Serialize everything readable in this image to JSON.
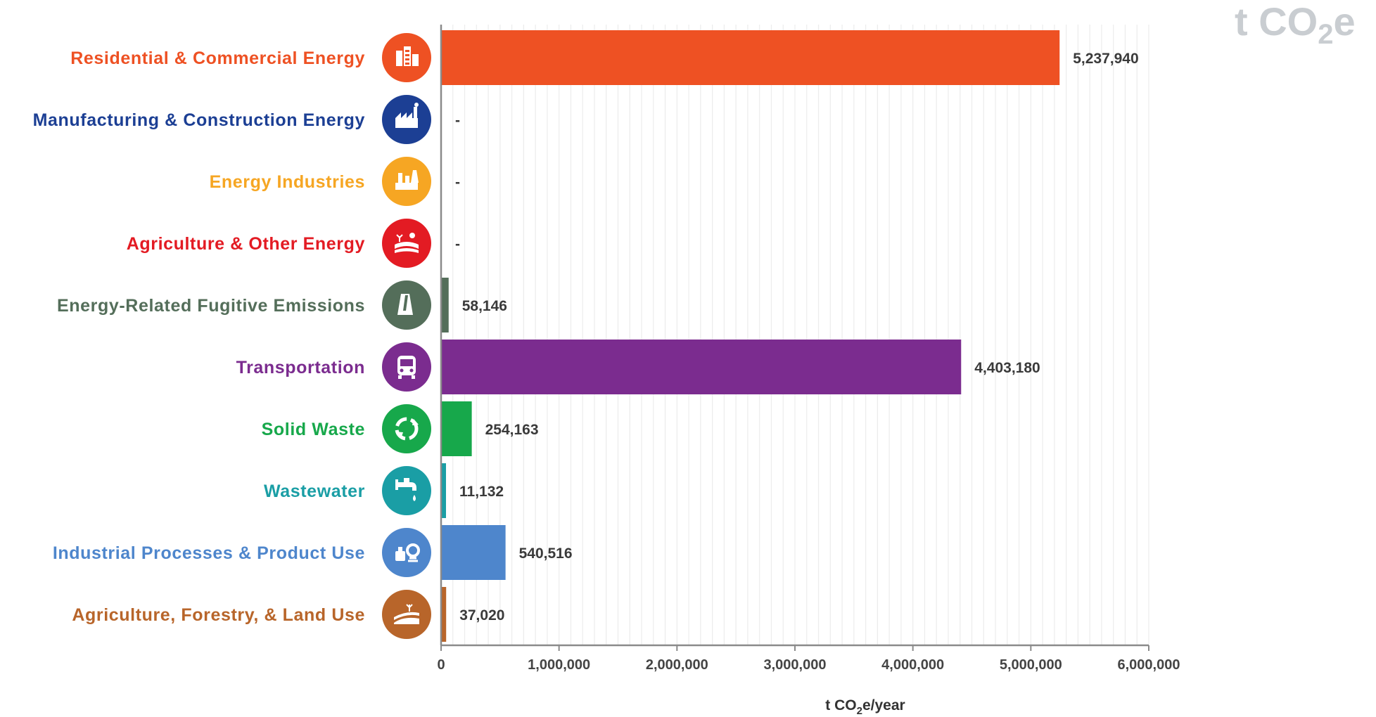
{
  "corner_unit": {
    "main": "t CO",
    "sub": "2",
    "tail": "e"
  },
  "chart_data": {
    "type": "bar",
    "orientation": "horizontal",
    "title": "",
    "xlabel": {
      "main": "t CO",
      "sub": "2",
      "tail": "e/year"
    },
    "ylabel": "",
    "xlim": [
      0,
      6000000
    ],
    "xticks": [
      0,
      1000000,
      2000000,
      3000000,
      4000000,
      5000000,
      6000000
    ],
    "xtick_labels": [
      "0",
      "1,000,000",
      "2,000,000",
      "3,000,000",
      "4,000,000",
      "5,000,000",
      "6,000,000"
    ],
    "grid": "vertical",
    "legend": "none",
    "categories": [
      "Residential & Commercial Energy",
      "Manufacturing & Construction Energy",
      "Energy Industries",
      "Agriculture & Other Energy",
      "Energy-Related Fugitive Emissions",
      "Transportation",
      "Solid Waste",
      "Wastewater",
      "Industrial Processes & Product Use",
      "Agriculture, Forestry, & Land Use"
    ],
    "values": [
      5237940,
      0,
      0,
      0,
      58146,
      4403180,
      254163,
      11132,
      540516,
      37020
    ],
    "value_labels": [
      "5,237,940",
      "-",
      "-",
      "-",
      "58,146",
      "4,403,180",
      "254,163",
      "11,132",
      "540,516",
      "37,020"
    ],
    "colors": [
      "#ee5123",
      "#1c3f94",
      "#f6a623",
      "#e31b23",
      "#546e5a",
      "#7b2c8f",
      "#17a84b",
      "#1a9ea5",
      "#4e86cc",
      "#b8652a"
    ],
    "icons": [
      "buildings-icon",
      "factory-icon",
      "power-plant-icon",
      "farm-field-icon",
      "cooling-tower-icon",
      "bus-icon",
      "recycle-icon",
      "water-tap-icon",
      "industrial-process-icon",
      "landscape-icon"
    ]
  }
}
